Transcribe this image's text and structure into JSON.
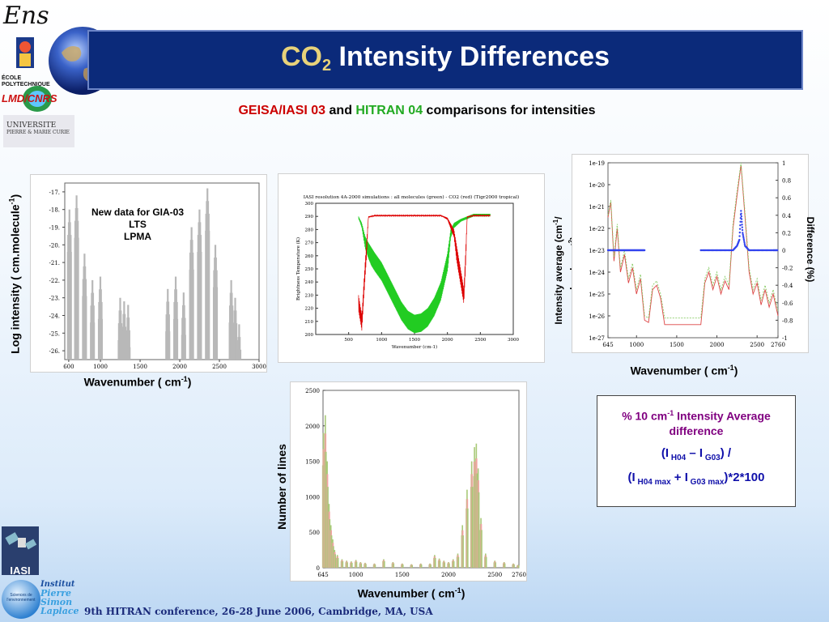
{
  "header": {
    "title_part1": "CO",
    "title_sub": "2",
    "title_part2": " Intensity Differences",
    "subtitle_part1": "GEISA/IASI 03",
    "subtitle_and": " and ",
    "subtitle_part2": "HITRAN 04",
    "subtitle_part3": " comparisons for intensities"
  },
  "logos": {
    "ens": "Ens",
    "polytechnique": "ÉCOLE POLYTECHNIQUE",
    "lmd": "LMD/CNRS",
    "universite_line1": "UNIVERSITE",
    "universite_line2": "PIERRE & MARIE CURIE",
    "iasi": "IASI",
    "ipsl_1": "Institut",
    "ipsl_2": "Pierre",
    "ipsl_3": "Simon",
    "ipsl_4": "Laplace",
    "ipsl_globe": "Sciences de l'environnement"
  },
  "colors": {
    "accent_red": "#cc0000",
    "accent_green": "#22aa22",
    "banner": "#0b2a7a",
    "purple": "#800080"
  },
  "footer": {
    "text": "9th HITRAN conference, 26-28 June 2006, Cambridge, MA, USA"
  },
  "chart_data": [
    {
      "type": "bar",
      "ylabel": "Log intensity ( cm.molecule",
      "ylabel_sup": "-1",
      "ylabel_end": ")",
      "xlabel": "Wavenumber ( cm",
      "xlabel_sup": "-1",
      "xlabel_end": ")",
      "annotation": [
        "New data for GIA-03",
        "LTS",
        "LPMA"
      ],
      "xticks": [
        "600",
        "1000",
        "1500",
        "2000",
        "2500",
        "3000"
      ],
      "yticks": [
        "-17.",
        "-18.",
        "-19.",
        "-20.",
        "-21.",
        "-22.",
        "-23.",
        "-24.",
        "-25.",
        "-26."
      ],
      "xlim": [
        550,
        3000
      ],
      "ylim": [
        -26.5,
        -16.5
      ],
      "bands": [
        {
          "x": [
            610,
            700,
            800,
            900,
            1000
          ],
          "peak": [
            -18.0,
            -17.2,
            -20.5,
            -22.0,
            -21.8
          ]
        },
        {
          "x": [
            1250,
            1300,
            1350
          ],
          "peak": [
            -23.0,
            -23.2,
            -23.4
          ]
        },
        {
          "x": [
            1850,
            1950,
            2050,
            2150,
            2250,
            2350,
            2450
          ],
          "peak": [
            -22.5,
            -21.8,
            -22.7,
            -19.0,
            -18.0,
            -16.8,
            -20.0
          ]
        },
        {
          "x": [
            2650,
            2700,
            2750
          ],
          "peak": [
            -22.0,
            -23.0,
            -24.5
          ]
        }
      ]
    },
    {
      "type": "line",
      "title": "IASI resolution 4A-2000 simulations : all molecules (green) - CO2 (red) (Tigr2000 tropical)",
      "xlabel": "Wavenumber (cm-1)",
      "ylabel": "Brightness Temperature (K)",
      "xlim": [
        0,
        3000
      ],
      "ylim": [
        200,
        300
      ],
      "xticks": [
        "500",
        "1000",
        "1500",
        "2000",
        "2500",
        "3000"
      ],
      "yticks": [
        "200",
        "210",
        "220",
        "230",
        "240",
        "250",
        "260",
        "270",
        "280",
        "290",
        "300"
      ],
      "series": [
        {
          "name": "all molecules",
          "color": "#22cc22",
          "x": [
            650,
            700,
            750,
            800,
            900,
            1000,
            1100,
            1200,
            1300,
            1400,
            1500,
            1600,
            1700,
            1800,
            1900,
            2000,
            2050,
            2100,
            2200,
            2300,
            2400,
            2500,
            2600,
            2650
          ],
          "y": [
            290,
            285,
            275,
            270,
            262,
            255,
            245,
            235,
            225,
            218,
            215,
            216,
            220,
            228,
            240,
            262,
            280,
            285,
            288,
            290,
            292,
            292,
            292,
            292
          ]
        },
        {
          "name": "CO2",
          "color": "#dd0000",
          "x": [
            650,
            700,
            750,
            800,
            900,
            1000,
            1500,
            1900,
            2000,
            2100,
            2200,
            2250,
            2300,
            2400,
            2500,
            2650
          ],
          "y": [
            230,
            215,
            255,
            290,
            291,
            291,
            291,
            291,
            289,
            280,
            250,
            235,
            290,
            291,
            291,
            291
          ]
        }
      ]
    },
    {
      "type": "line",
      "ylabel": "Intensity average (cm",
      "ylabel_sup": "-1",
      "ylabel_mid": "/ molecule cm",
      "ylabel_sup2": "-2",
      "ylabel_end": ")",
      "y2label": "Difference (%)",
      "xlabel": "Wavenumber ( cm",
      "xlabel_sup": "-1",
      "xlabel_end": ")",
      "xticks": [
        "645",
        "1000",
        "1500",
        "2000",
        "2500",
        "2760"
      ],
      "yticks": [
        "1e-19",
        "1e-20",
        "1e-21",
        "1e-22",
        "1e-23",
        "1e-24",
        "1e-25",
        "1e-26",
        "1e-27"
      ],
      "y2ticks": [
        "1",
        "0.8",
        "0.6",
        "0.4",
        "0.2",
        "0",
        "-0.2",
        "-0.4",
        "-0.6",
        "-0.8",
        "-1"
      ],
      "xlim": [
        645,
        2760
      ],
      "ylim_log10": [
        -27,
        -19
      ],
      "y2lim": [
        -1,
        1
      ],
      "series": [
        {
          "name": "HITRAN 04",
          "color": "#dd4444",
          "x": [
            645,
            680,
            720,
            760,
            800,
            850,
            900,
            950,
            1000,
            1050,
            1100,
            1150,
            1200,
            1250,
            1300,
            1350,
            1400,
            1800,
            1850,
            1900,
            1950,
            2000,
            2050,
            2100,
            2150,
            2200,
            2250,
            2300,
            2350,
            2400,
            2450,
            2500,
            2550,
            2600,
            2650,
            2700,
            2760
          ],
          "y": [
            -21.5,
            -20.8,
            -23.5,
            -22.0,
            -24.0,
            -23.2,
            -24.5,
            -23.8,
            -25.0,
            -24.3,
            -26.2,
            -26.3,
            -24.8,
            -24.6,
            -25.2,
            -26.4,
            -26.4,
            -26.4,
            -24.5,
            -24.0,
            -24.8,
            -24.2,
            -25.0,
            -24.4,
            -24.8,
            -22.0,
            -20.5,
            -19.1,
            -21.5,
            -24.0,
            -25.0,
            -24.5,
            -25.5,
            -24.8,
            -25.6,
            -25.0,
            -26.0
          ]
        },
        {
          "name": "GEISA/IASI 03",
          "color": "#88cc66",
          "x": [
            645,
            680,
            720,
            760,
            800,
            850,
            900,
            950,
            1000,
            1050,
            1100,
            1150,
            1200,
            1250,
            1300,
            1350,
            1400,
            1800,
            1850,
            1900,
            1950,
            2000,
            2050,
            2100,
            2150,
            2200,
            2250,
            2300,
            2350,
            2400,
            2450,
            2500,
            2550,
            2600,
            2650,
            2700,
            2760
          ],
          "y": [
            -21.4,
            -20.7,
            -23.3,
            -21.8,
            -23.8,
            -23.0,
            -24.3,
            -23.6,
            -24.8,
            -24.1,
            -26.0,
            -26.1,
            -24.6,
            -24.4,
            -25.0,
            -26.1,
            -26.1,
            -26.1,
            -24.3,
            -23.8,
            -24.6,
            -24.0,
            -24.8,
            -24.2,
            -24.6,
            -21.8,
            -20.3,
            -19.0,
            -21.3,
            -23.8,
            -24.8,
            -24.3,
            -25.3,
            -24.6,
            -25.4,
            -24.8,
            -25.8
          ]
        },
        {
          "name": "difference",
          "color": "#3344ee",
          "axis": "y2",
          "x": [
            645,
            700,
            750,
            800,
            850,
            900,
            950,
            1000,
            1050,
            1100,
            1800,
            1900,
            2000,
            2100,
            2200,
            2250,
            2280,
            2300,
            2320,
            2350,
            2400,
            2500,
            2600,
            2700,
            2760
          ],
          "y": [
            0,
            0,
            0,
            0,
            0,
            0,
            0,
            0,
            0,
            0,
            0,
            0,
            0,
            0,
            0,
            0.05,
            0.12,
            0.45,
            0.2,
            0.05,
            0,
            0,
            0,
            0,
            0
          ]
        }
      ]
    },
    {
      "type": "bar",
      "ylabel": "Number of lines",
      "xlabel": "Wavenumber ( cm",
      "xlabel_sup": "-1",
      "xlabel_end": ")",
      "xticks": [
        "645",
        "1000",
        "1500",
        "2000",
        "2500",
        "2760"
      ],
      "yticks": [
        "0",
        "500",
        "1000",
        "1500",
        "2000",
        "2500"
      ],
      "xlim": [
        645,
        2760
      ],
      "ylim": [
        0,
        2500
      ],
      "x": [
        650,
        670,
        690,
        710,
        730,
        750,
        770,
        800,
        850,
        900,
        950,
        1000,
        1050,
        1100,
        1200,
        1300,
        1400,
        1500,
        1600,
        1700,
        1800,
        1850,
        1900,
        1950,
        2000,
        2050,
        2100,
        2150,
        2200,
        2250,
        2280,
        2300,
        2320,
        2350,
        2400,
        2500,
        2600,
        2700,
        2750
      ],
      "values": [
        1900,
        2150,
        1500,
        900,
        600,
        400,
        250,
        180,
        120,
        100,
        90,
        110,
        80,
        70,
        60,
        120,
        80,
        60,
        50,
        60,
        60,
        180,
        130,
        100,
        80,
        120,
        200,
        600,
        1100,
        1500,
        1700,
        1750,
        1400,
        700,
        200,
        100,
        80,
        60,
        40
      ]
    }
  ],
  "legend_box": {
    "line1_a": "% 10 cm",
    "line1_sup": "-1",
    "line1_b": " Intensity Average difference",
    "line2_a": "(I",
    "line2_sub1": " H04",
    "line2_b": " – I",
    "line2_sub2": " G03",
    "line2_c": ") /",
    "line3_a": "(I",
    "line3_sub1": " H04 max",
    "line3_b": " + I",
    "line3_sub2": " G03 max",
    "line3_c": ")*2*100"
  }
}
